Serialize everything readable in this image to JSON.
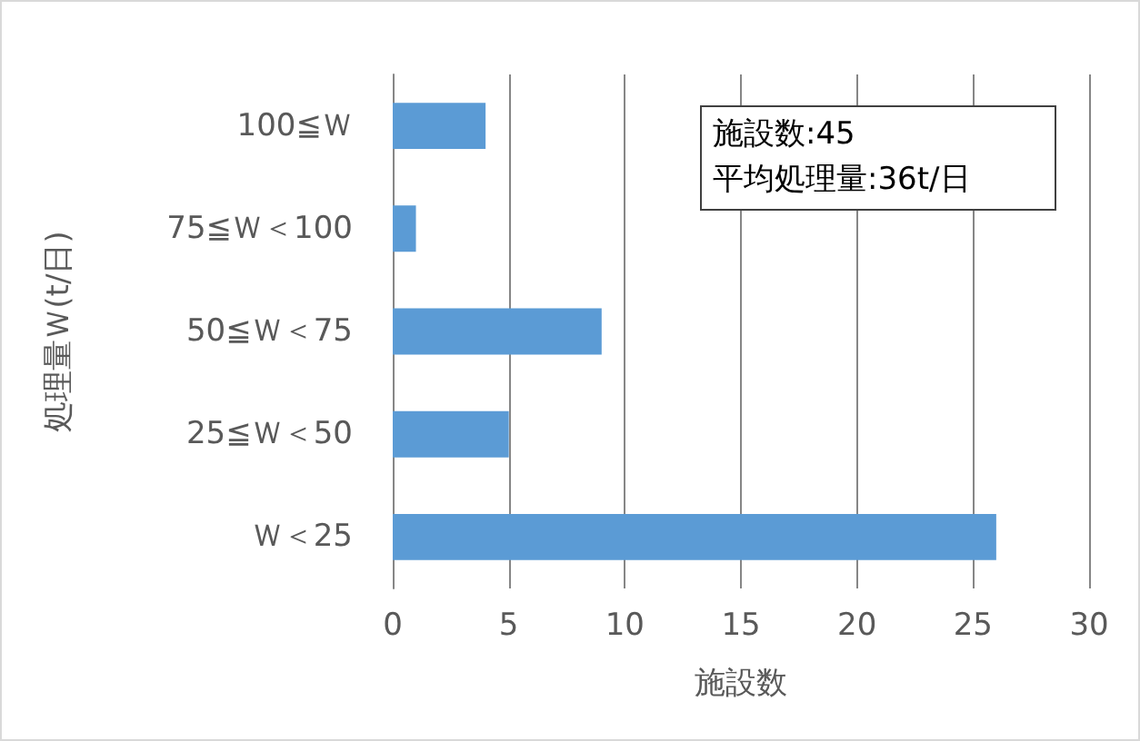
{
  "chart_data": {
    "type": "bar",
    "orientation": "horizontal",
    "categories": [
      "100≦Ｗ",
      "75≦Ｗ＜100",
      "50≦Ｗ＜75",
      "25≦Ｗ＜50",
      "Ｗ＜25"
    ],
    "values": [
      4,
      1,
      9,
      5,
      26
    ],
    "color": "#5b9bd5",
    "xlim": [
      0,
      30
    ],
    "xticks": [
      0,
      5,
      10,
      15,
      20,
      25,
      30
    ],
    "grid": "x",
    "xlabel": "施設数",
    "ylabel": "処理量Ｗ(t/日)",
    "annotations": [
      "施設数:45",
      "平均処理量:36t/日"
    ]
  }
}
